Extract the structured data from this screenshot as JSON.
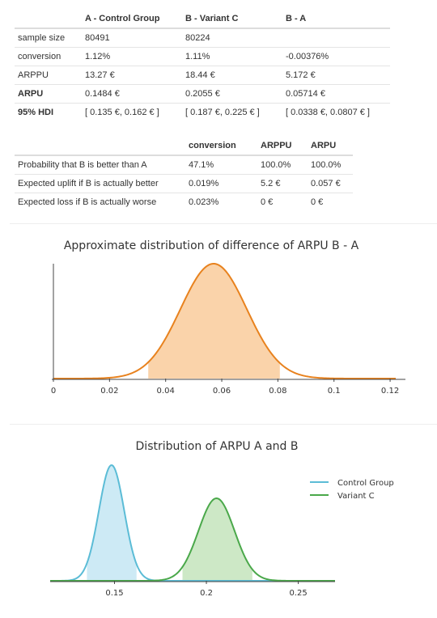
{
  "summary_table": {
    "headers": [
      "",
      "A - Control Group",
      "B - Variant C",
      "B - A"
    ],
    "rows": [
      {
        "label": "sample size",
        "bold": false,
        "a": "80491",
        "b": "80224",
        "diff": ""
      },
      {
        "label": "conversion",
        "bold": false,
        "a": "1.12%",
        "b": "1.11%",
        "diff": "-0.00376%"
      },
      {
        "label": "ARPPU",
        "bold": false,
        "a": "13.27 €",
        "b": "18.44 €",
        "diff": "5.172 €"
      },
      {
        "label": "ARPU",
        "bold": true,
        "a": "0.1484 €",
        "b": "0.2055 €",
        "diff": "0.05714 €"
      },
      {
        "label": "95% HDI",
        "bold": true,
        "a": "[ 0.135 €, 0.162 € ]",
        "b": "[ 0.187 €, 0.225 € ]",
        "diff": "[ 0.0338 €, 0.0807 € ]"
      }
    ]
  },
  "probability_table": {
    "headers": [
      "",
      "conversion",
      "ARPPU",
      "ARPU"
    ],
    "rows": [
      {
        "label": "Probability that B is better than A",
        "conversion": "47.1%",
        "arppu": "100.0%",
        "arpu": "100.0%"
      },
      {
        "label": "Expected uplift if B is actually better",
        "conversion": "0.019%",
        "arppu": "5.2 €",
        "arpu": "0.057 €"
      },
      {
        "label": "Expected loss if B is actually worse",
        "conversion": "0.023%",
        "arppu": "0 €",
        "arpu": "0 €"
      }
    ]
  },
  "chart_data": [
    {
      "type": "area",
      "title": "Approximate distribution of difference of ARPU B - A",
      "xlabel": "",
      "ylabel": "",
      "xlim": [
        0,
        0.122
      ],
      "x_ticks": [
        0,
        0.02,
        0.04,
        0.06,
        0.08,
        0.1,
        0.12
      ],
      "x_tick_labels": [
        "0",
        "0.02",
        "0.04",
        "0.06",
        "0.08",
        "0.1",
        "0.12"
      ],
      "grid": false,
      "series": [
        {
          "mean": 0.0571,
          "sd": 0.0118,
          "hdi": [
            0.0338,
            0.0807
          ],
          "color": "#e8821e",
          "fill": "#fad3aa"
        }
      ]
    },
    {
      "type": "area",
      "title": "Distribution of ARPU A and B",
      "xlabel": "",
      "ylabel": "",
      "xlim": [
        0.115,
        0.27
      ],
      "x_ticks": [
        0.15,
        0.2,
        0.25
      ],
      "x_tick_labels": [
        "0.15",
        "0.2",
        "0.25"
      ],
      "grid": false,
      "legend_position": "top-right",
      "series": [
        {
          "name": "Control Group",
          "mean": 0.1484,
          "sd": 0.0069,
          "hdi": [
            0.135,
            0.162
          ],
          "color": "#5bbcd6",
          "fill": "#cdeaf5"
        },
        {
          "name": "Variant C",
          "mean": 0.2055,
          "sd": 0.0098,
          "hdi": [
            0.187,
            0.225
          ],
          "color": "#4aa84a",
          "fill": "#cde8c6"
        }
      ]
    }
  ]
}
